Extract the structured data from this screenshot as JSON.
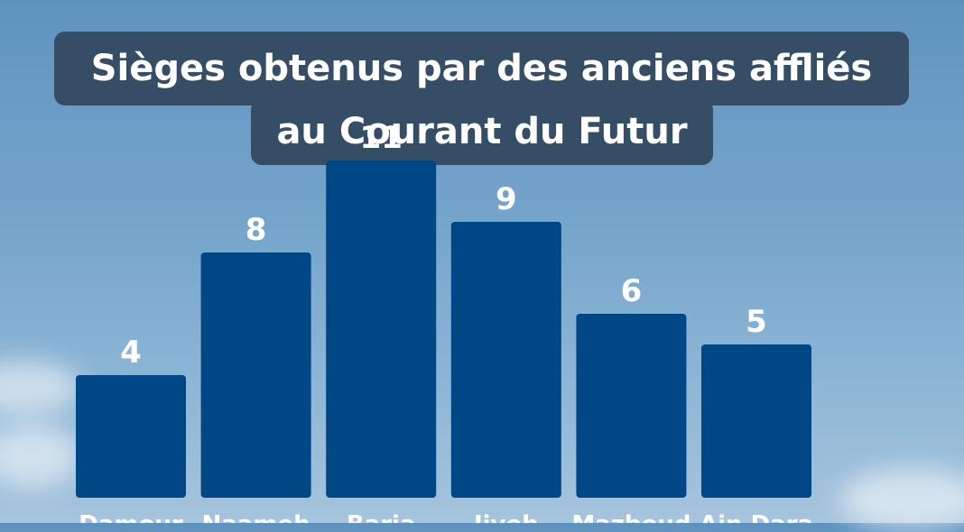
{
  "title_lines": [
    "Sièges obtenus par des anciens affliés",
    "au Courant du Futur"
  ],
  "colors": {
    "bar": "#004785",
    "title_bg": "#354d65",
    "text": "#ffffff"
  },
  "chart_data": {
    "type": "bar",
    "title": "Sièges obtenus par des anciens affliés au Courant du Futur",
    "categories": [
      "Damour",
      "Naameh",
      "Barja",
      "Jiyeh",
      "Mazboud",
      "Ain Dara"
    ],
    "values": [
      4,
      8,
      11,
      9,
      6,
      5
    ],
    "xlabel": "",
    "ylabel": "",
    "grid": false,
    "legend": "none"
  }
}
